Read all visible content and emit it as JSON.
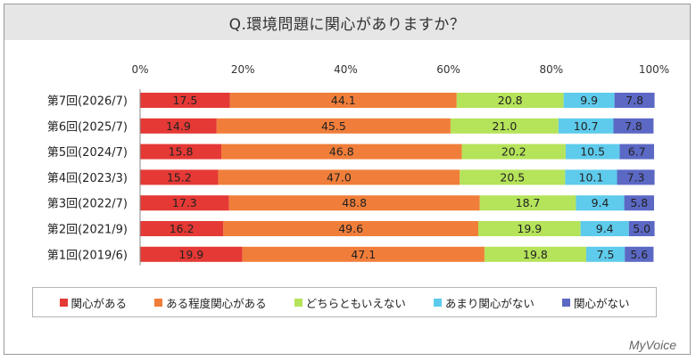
{
  "title": "Q.環境問題に関心がありますか？",
  "brand": "MyVoice",
  "chart_data": {
    "type": "bar",
    "orientation": "horizontal",
    "stacked": true,
    "percent_stacked": true,
    "xlim": [
      0,
      100
    ],
    "x_ticks": [
      "0%",
      "20%",
      "40%",
      "60%",
      "80%",
      "100%"
    ],
    "categories": [
      "第7回(2026/7)",
      "第6回(2025/7)",
      "第5回(2024/7)",
      "第4回(2023/3)",
      "第3回(2022/7)",
      "第2回(2021/9)",
      "第1回(2019/6)"
    ],
    "series": [
      {
        "name": "関心がある",
        "color": "#e53935",
        "values": [
          17.5,
          14.9,
          15.8,
          15.2,
          17.3,
          16.2,
          19.9
        ]
      },
      {
        "name": "ある程度関心がある",
        "color": "#f07e3a",
        "values": [
          44.1,
          45.5,
          46.8,
          47.0,
          48.8,
          49.6,
          47.1
        ]
      },
      {
        "name": "どちらともいえない",
        "color": "#b5e35a",
        "values": [
          20.8,
          21.0,
          20.2,
          20.5,
          18.7,
          19.9,
          19.8
        ]
      },
      {
        "name": "あまり関心がない",
        "color": "#5ecbec",
        "values": [
          9.9,
          10.7,
          10.5,
          10.1,
          9.4,
          9.4,
          7.5
        ]
      },
      {
        "name": "関心がない",
        "color": "#5b68c4",
        "values": [
          7.8,
          7.8,
          6.7,
          7.3,
          5.8,
          5.0,
          5.6
        ]
      }
    ],
    "legend_position": "bottom",
    "grid": false
  }
}
